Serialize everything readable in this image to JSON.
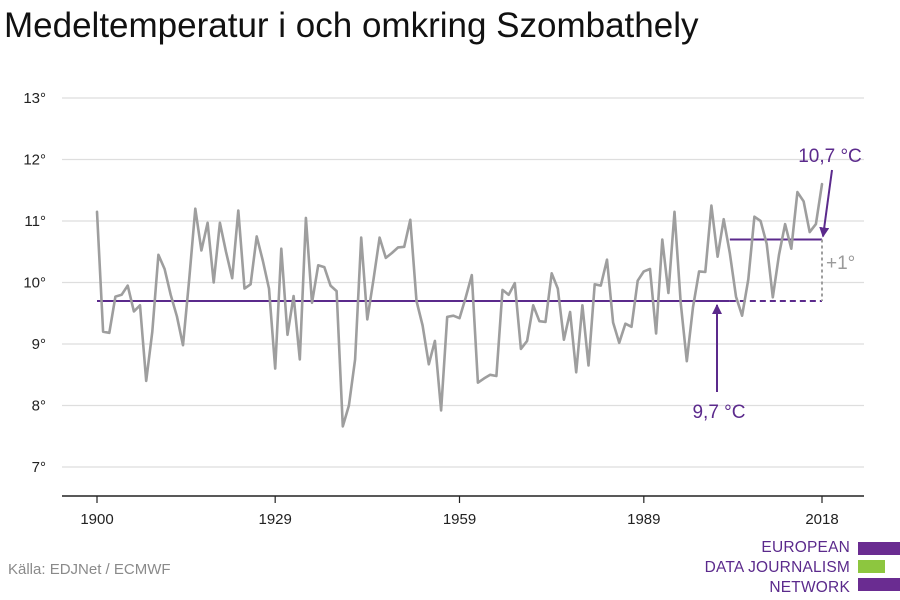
{
  "title": "Medeltemperatur i och omkring Szombathely",
  "source": "Källa: EDJNet / ECMWF",
  "logo": {
    "lines": [
      "EUROPEAN",
      "DATA JOURNALISM",
      "NETWORK"
    ],
    "colors": [
      "#6a2c91",
      "#8dc63f",
      "#6a2c91"
    ]
  },
  "colors": {
    "line": "#9e9e9e",
    "accent": "#5b2a8c",
    "grid": "#dedede",
    "axis": "#222222"
  },
  "chart_data": {
    "type": "line",
    "title": "Medeltemperatur i och omkring Szombathely",
    "xlabel": "",
    "ylabel": "",
    "xlim": [
      1900,
      2018
    ],
    "ylim": [
      7,
      13
    ],
    "x_ticks": [
      1900,
      1929,
      1959,
      1989,
      2018
    ],
    "x_tick_labels": [
      "1900",
      "1929",
      "1959",
      "1989",
      "2018"
    ],
    "y_ticks": [
      7,
      8,
      9,
      10,
      11,
      12,
      13
    ],
    "y_tick_labels": [
      "7°",
      "8°",
      "9°",
      "10°",
      "11°",
      "12°",
      "13°"
    ],
    "grid": true,
    "series": [
      {
        "x": [
          1900,
          1901,
          1902,
          1903,
          1904,
          1905,
          1906,
          1907,
          1908,
          1909,
          1910,
          1911,
          1912,
          1913,
          1914,
          1915,
          1916,
          1917,
          1918,
          1919,
          1920,
          1921,
          1922,
          1923,
          1924,
          1925,
          1926,
          1927,
          1928,
          1929,
          1930,
          1931,
          1932,
          1933,
          1934,
          1935,
          1936,
          1937,
          1938,
          1939,
          1940,
          1941,
          1942,
          1943,
          1944,
          1945,
          1946,
          1947,
          1948,
          1949,
          1950,
          1951,
          1952,
          1953,
          1954,
          1955,
          1956,
          1957,
          1958,
          1959,
          1960,
          1961,
          1962,
          1963,
          1964,
          1965,
          1966,
          1967,
          1968,
          1969,
          1970,
          1971,
          1972,
          1973,
          1974,
          1975,
          1976,
          1977,
          1978,
          1979,
          1980,
          1981,
          1982,
          1983,
          1984,
          1985,
          1986,
          1987,
          1988,
          1989,
          1990,
          1991,
          1992,
          1993,
          1994,
          1995,
          1996,
          1997,
          1998,
          1999,
          2000,
          2001,
          2002,
          2003,
          2004,
          2005,
          2006,
          2007,
          2008,
          2009,
          2010,
          2011,
          2012,
          2013,
          2014,
          2015,
          2016,
          2017,
          2018
        ],
        "values": [
          11.15,
          9.2,
          9.18,
          9.77,
          9.8,
          9.95,
          9.53,
          9.63,
          8.4,
          9.2,
          10.45,
          10.22,
          9.8,
          9.45,
          8.98,
          10.05,
          11.2,
          10.52,
          10.97,
          10.0,
          10.97,
          10.5,
          10.07,
          11.17,
          9.9,
          9.97,
          10.75,
          10.35,
          9.9,
          8.6,
          10.55,
          9.15,
          9.78,
          8.75,
          11.05,
          9.67,
          10.28,
          10.25,
          9.95,
          9.86,
          7.66,
          8.0,
          8.75,
          10.73,
          9.4,
          10.05,
          10.73,
          10.4,
          10.48,
          10.57,
          10.58,
          11.02,
          9.7,
          9.3,
          8.67,
          9.05,
          7.92,
          9.44,
          9.46,
          9.42,
          9.75,
          10.12,
          8.37,
          8.44,
          8.5,
          8.48,
          9.88,
          9.8,
          9.99,
          8.92,
          9.05,
          9.63,
          9.37,
          9.36,
          10.15,
          9.9,
          9.07,
          9.52,
          8.54,
          9.63,
          8.65,
          9.97,
          9.95,
          10.37,
          9.35,
          9.02,
          9.33,
          9.28,
          10.03,
          10.18,
          10.22,
          9.17,
          10.7,
          9.83,
          11.15,
          9.67,
          8.72,
          9.6,
          10.18,
          10.17,
          11.25,
          10.42,
          11.03,
          10.48,
          9.77,
          9.46,
          10.05,
          11.07,
          11.0,
          10.63,
          9.76,
          10.45,
          10.95,
          10.55,
          11.47,
          11.32,
          10.82,
          10.95,
          11.6
        ]
      }
    ],
    "reference_lines": [
      {
        "label": "9,7 °C",
        "value": 9.7,
        "from": 1900,
        "to": 2018,
        "dashed_from": 2003
      },
      {
        "label": "10,7 °C",
        "value": 10.7,
        "from": 2003,
        "to": 2018
      }
    ],
    "difference_label": "+1°"
  }
}
